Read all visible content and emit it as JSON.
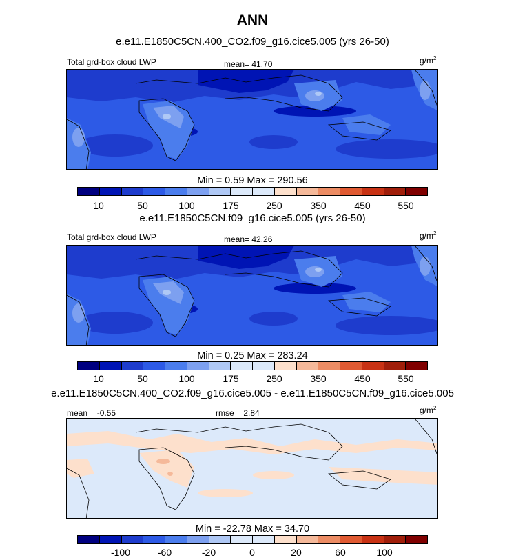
{
  "title": "ANN",
  "palette": [
    "#000080",
    "#0014b4",
    "#1e3ccd",
    "#2d5ae6",
    "#4b7ded",
    "#7da0f0",
    "#afc8f5",
    "#dce9fa",
    "#fde0cc",
    "#f5b99a",
    "#ec8c64",
    "#e05a32",
    "#c83214",
    "#a01e0a",
    "#800000"
  ],
  "panels": [
    {
      "case": "e.e11.E1850C5CN.400_CO2.f09_g16.cice5.005 (yrs 26-50)",
      "left_label": "Total grd-box cloud LWP",
      "center_label": "mean=  41.70",
      "units": "g/m",
      "units_sup": "2",
      "stats": "Min =   0.59 Max = 290.56",
      "tick_labels": [
        "10",
        "50",
        "100",
        "175",
        "250",
        "350",
        "450",
        "550"
      ]
    },
    {
      "case": "e.e11.E1850C5CN.f09_g16.cice5.005 (yrs 26-50)",
      "left_label": "Total grd-box cloud LWP",
      "center_label": "mean=  42.26",
      "units": "g/m",
      "units_sup": "2",
      "stats": "Min =   0.25 Max = 283.24",
      "tick_labels": [
        "10",
        "50",
        "100",
        "175",
        "250",
        "350",
        "450",
        "550"
      ]
    },
    {
      "case": "e.e11.E1850C5CN.400_CO2.f09_g16.cice5.005 - e.e11.E1850C5CN.f09_g16.cice5.005",
      "left_label": "mean =  -0.55",
      "center_label": "rmse =   2.84",
      "units": "g/m",
      "units_sup": "2",
      "stats": "Min = -22.78 Max =  34.70",
      "tick_labels": [
        "-100",
        "-60",
        "-20",
        "0",
        "20",
        "60",
        "100"
      ]
    }
  ]
}
